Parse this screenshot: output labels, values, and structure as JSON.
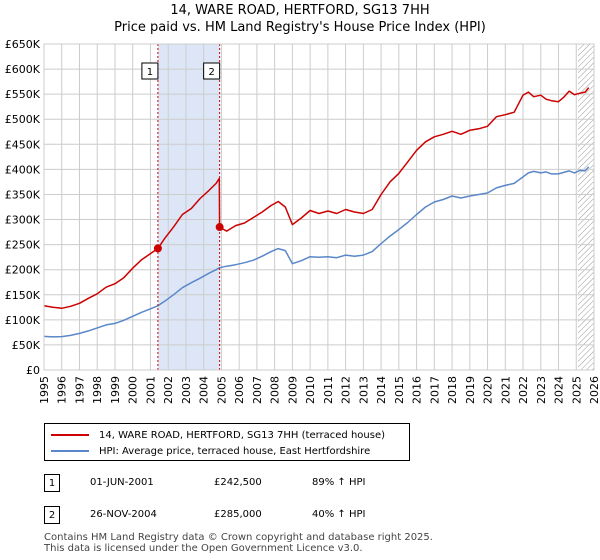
{
  "title": "14, WARE ROAD, HERTFORD, SG13 7HH",
  "subtitle": "Price paid vs. HM Land Registry's House Price Index (HPI)",
  "colors": {
    "property": "#cc0000",
    "hpi": "#5a87c9",
    "shade": "#dde6f6",
    "grid": "#cccccc",
    "marker_line": "#cc0000"
  },
  "chart_data": {
    "type": "line",
    "title": "Price paid vs. HM Land Registry's House Price Index (HPI)",
    "xlabel": "",
    "ylabel": "",
    "xlim": [
      1995,
      2026
    ],
    "ylim": [
      0,
      650000
    ],
    "yticks": [
      0,
      50000,
      100000,
      150000,
      200000,
      250000,
      300000,
      350000,
      400000,
      450000,
      500000,
      550000,
      600000,
      650000
    ],
    "ytick_labels": [
      "£0",
      "£50K",
      "£100K",
      "£150K",
      "£200K",
      "£250K",
      "£300K",
      "£350K",
      "£400K",
      "£450K",
      "£500K",
      "£550K",
      "£600K",
      "£650K"
    ],
    "xtick_labels": [
      "1995",
      "1996",
      "1997",
      "1998",
      "1999",
      "2000",
      "2001",
      "2002",
      "2003",
      "2004",
      "2005",
      "2006",
      "2007",
      "2008",
      "2009",
      "2010",
      "2011",
      "2012",
      "2013",
      "2014",
      "2015",
      "2016",
      "2017",
      "2018",
      "2019",
      "2020",
      "2021",
      "2022",
      "2023",
      "2024",
      "2025",
      "2026"
    ],
    "shaded_range": [
      2001.42,
      2004.9
    ],
    "hatched_from": 2025.1,
    "series": [
      {
        "name": "14, WARE ROAD, HERTFORD, SG13 7HH (terraced house)",
        "color": "#cc0000",
        "x": [
          1995.0,
          1995.5,
          1996.0,
          1996.5,
          1997.0,
          1997.5,
          1998.0,
          1998.5,
          1999.0,
          1999.5,
          2000.0,
          2000.5,
          2001.0,
          2001.42,
          2001.8,
          2002.3,
          2002.8,
          2003.3,
          2003.8,
          2004.3,
          2004.7,
          2004.88,
          2004.9,
          2005.3,
          2005.8,
          2006.3,
          2006.8,
          2007.3,
          2007.8,
          2008.2,
          2008.6,
          2009.0,
          2009.5,
          2010.0,
          2010.5,
          2011.0,
          2011.5,
          2012.0,
          2012.5,
          2013.0,
          2013.5,
          2014.0,
          2014.5,
          2015.0,
          2015.5,
          2016.0,
          2016.5,
          2017.0,
          2017.5,
          2018.0,
          2018.5,
          2019.0,
          2019.5,
          2020.0,
          2020.5,
          2021.0,
          2021.5,
          2022.0,
          2022.3,
          2022.6,
          2023.0,
          2023.3,
          2023.6,
          2024.0,
          2024.3,
          2024.6,
          2024.9,
          2025.2,
          2025.5,
          2025.7
        ],
        "values": [
          128000,
          125000,
          123000,
          127000,
          133000,
          143000,
          152000,
          165000,
          172000,
          184000,
          203000,
          220000,
          232000,
          242500,
          262000,
          285000,
          310000,
          322000,
          342000,
          358000,
          372000,
          382000,
          285000,
          277000,
          288000,
          293000,
          304000,
          315000,
          328000,
          336000,
          325000,
          290000,
          303000,
          318000,
          312000,
          317000,
          312000,
          320000,
          315000,
          312000,
          320000,
          350000,
          375000,
          392000,
          415000,
          438000,
          455000,
          465000,
          470000,
          476000,
          470000,
          478000,
          481000,
          486000,
          505000,
          509000,
          514000,
          548000,
          554000,
          545000,
          548000,
          540000,
          537000,
          535000,
          544000,
          556000,
          549000,
          552000,
          554000,
          563000
        ]
      },
      {
        "name": "HPI: Average price, terraced house, East Hertfordshire",
        "color": "#5a87c9",
        "x": [
          1995.0,
          1995.5,
          1996.0,
          1996.5,
          1997.0,
          1997.5,
          1998.0,
          1998.5,
          1999.0,
          1999.5,
          2000.0,
          2000.5,
          2001.0,
          2001.42,
          2001.8,
          2002.3,
          2002.8,
          2003.3,
          2003.8,
          2004.3,
          2004.7,
          2004.9,
          2005.3,
          2005.8,
          2006.3,
          2006.8,
          2007.3,
          2007.8,
          2008.2,
          2008.6,
          2009.0,
          2009.5,
          2010.0,
          2010.5,
          2011.0,
          2011.5,
          2012.0,
          2012.5,
          2013.0,
          2013.5,
          2014.0,
          2014.5,
          2015.0,
          2015.5,
          2016.0,
          2016.5,
          2017.0,
          2017.5,
          2018.0,
          2018.5,
          2019.0,
          2019.5,
          2020.0,
          2020.5,
          2021.0,
          2021.5,
          2022.0,
          2022.3,
          2022.6,
          2023.0,
          2023.3,
          2023.6,
          2024.0,
          2024.3,
          2024.6,
          2024.9,
          2025.2,
          2025.5,
          2025.7
        ],
        "values": [
          67000,
          66000,
          66500,
          69000,
          73000,
          78000,
          84000,
          90000,
          93000,
          99000,
          107000,
          115000,
          122000,
          128000,
          137000,
          150000,
          164000,
          174000,
          183000,
          193000,
          200000,
          204000,
          207000,
          210000,
          214000,
          219000,
          227000,
          236000,
          242000,
          238000,
          212000,
          218000,
          226000,
          225000,
          226000,
          224000,
          229000,
          227000,
          229000,
          236000,
          252000,
          267000,
          280000,
          294000,
          310000,
          325000,
          335000,
          340000,
          347000,
          343000,
          347000,
          350000,
          353000,
          363000,
          368000,
          372000,
          385000,
          393000,
          396000,
          393000,
          395000,
          391000,
          391000,
          394000,
          397000,
          393000,
          398000,
          397000,
          405000
        ]
      }
    ],
    "markers": [
      {
        "label": "1",
        "x": 2001.42,
        "y": 242500
      },
      {
        "label": "2",
        "x": 2004.9,
        "y": 285000
      }
    ]
  },
  "legend": [
    {
      "label": "14, WARE ROAD, HERTFORD, SG13 7HH (terraced house)",
      "color": "#cc0000"
    },
    {
      "label": "HPI: Average price, terraced house, East Hertfordshire",
      "color": "#5a87c9"
    }
  ],
  "transactions": [
    {
      "num": "1",
      "date": "01-JUN-2001",
      "price": "£242,500",
      "hpi": "89% ↑ HPI"
    },
    {
      "num": "2",
      "date": "26-NOV-2004",
      "price": "£285,000",
      "hpi": "40% ↑ HPI"
    }
  ],
  "footer": {
    "line1": "Contains HM Land Registry data © Crown copyright and database right 2025.",
    "line2": "This data is licensed under the Open Government Licence v3.0."
  }
}
